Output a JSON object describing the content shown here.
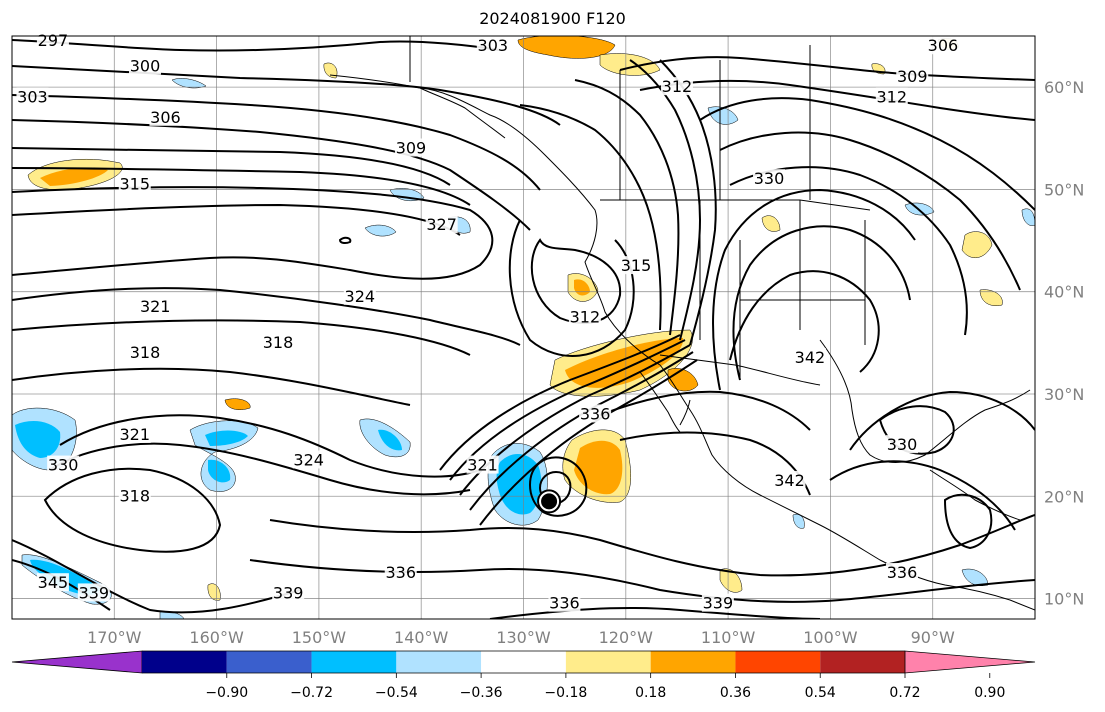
{
  "title": "2024081900 F120",
  "map": {
    "lon_range": [
      -180,
      -80
    ],
    "lat_range": [
      8,
      65
    ],
    "lon_ticks": [
      {
        "value": -170,
        "label": "170°W"
      },
      {
        "value": -160,
        "label": "160°W"
      },
      {
        "value": -150,
        "label": "150°W"
      },
      {
        "value": -140,
        "label": "140°W"
      },
      {
        "value": -130,
        "label": "130°W"
      },
      {
        "value": -120,
        "label": "120°W"
      },
      {
        "value": -110,
        "label": "110°W"
      },
      {
        "value": -100,
        "label": "100°W"
      },
      {
        "value": -90,
        "label": "90°W"
      }
    ],
    "lat_ticks": [
      {
        "value": 60,
        "label": "60°N"
      },
      {
        "value": 50,
        "label": "50°N"
      },
      {
        "value": 40,
        "label": "40°N"
      },
      {
        "value": 30,
        "label": "30°N"
      },
      {
        "value": 20,
        "label": "20°N"
      },
      {
        "value": 10,
        "label": "10°N"
      }
    ],
    "grid": true,
    "contour_labels": [
      {
        "text": "297",
        "lon": -176,
        "lat": 64.5
      },
      {
        "text": "303",
        "lon": -133,
        "lat": 64
      },
      {
        "text": "306",
        "lon": -89,
        "lat": 64
      },
      {
        "text": "300",
        "lon": -167,
        "lat": 62
      },
      {
        "text": "309",
        "lon": -92,
        "lat": 61
      },
      {
        "text": "312",
        "lon": -115,
        "lat": 60
      },
      {
        "text": "312",
        "lon": -94,
        "lat": 59
      },
      {
        "text": "303",
        "lon": -178,
        "lat": 59
      },
      {
        "text": "306",
        "lon": -165,
        "lat": 57
      },
      {
        "text": "309",
        "lon": -141,
        "lat": 54
      },
      {
        "text": "315",
        "lon": -168,
        "lat": 50.5
      },
      {
        "text": "330",
        "lon": -106,
        "lat": 51
      },
      {
        "text": "327",
        "lon": -138,
        "lat": 46.5
      },
      {
        "text": "315",
        "lon": -119,
        "lat": 42.5
      },
      {
        "text": "324",
        "lon": -146,
        "lat": 39.5
      },
      {
        "text": "321",
        "lon": -166,
        "lat": 38.5
      },
      {
        "text": "312",
        "lon": -124,
        "lat": 37.5
      },
      {
        "text": "318",
        "lon": -154,
        "lat": 35
      },
      {
        "text": "318",
        "lon": -167,
        "lat": 34
      },
      {
        "text": "342",
        "lon": -102,
        "lat": 33.5
      },
      {
        "text": "336",
        "lon": -123,
        "lat": 28
      },
      {
        "text": "321",
        "lon": -168,
        "lat": 26
      },
      {
        "text": "330",
        "lon": -93,
        "lat": 25
      },
      {
        "text": "324",
        "lon": -151,
        "lat": 23.5
      },
      {
        "text": "321",
        "lon": -134,
        "lat": 23
      },
      {
        "text": "330",
        "lon": -175,
        "lat": 23
      },
      {
        "text": "342",
        "lon": -104,
        "lat": 21.5
      },
      {
        "text": "318",
        "lon": -168,
        "lat": 20
      },
      {
        "text": "336",
        "lon": -142,
        "lat": 12.5
      },
      {
        "text": "336",
        "lon": -93,
        "lat": 12.5
      },
      {
        "text": "345",
        "lon": -176,
        "lat": 11.5
      },
      {
        "text": "339",
        "lon": -172,
        "lat": 10.5
      },
      {
        "text": "339",
        "lon": -153,
        "lat": 10.5
      },
      {
        "text": "336",
        "lon": -126,
        "lat": 9.5
      },
      {
        "text": "339",
        "lon": -111,
        "lat": 9.5
      }
    ],
    "storm_marker": {
      "lon": -127.5,
      "lat": 19.5
    },
    "colors": {
      "contour": "#000000",
      "grid": "#808080",
      "coast": "#000000"
    }
  },
  "colorbar": {
    "ticks": [
      "−0.90",
      "−0.72",
      "−0.54",
      "−0.36",
      "−0.18",
      "0.18",
      "0.36",
      "0.54",
      "0.72",
      "0.90"
    ],
    "colors": [
      "#9932cc",
      "#00008b",
      "#3a5fcd",
      "#00bfff",
      "#b0e2ff",
      "#ffffff",
      "#ffec8b",
      "#ffa500",
      "#ff4500",
      "#b22222",
      "#ff82ab"
    ]
  }
}
